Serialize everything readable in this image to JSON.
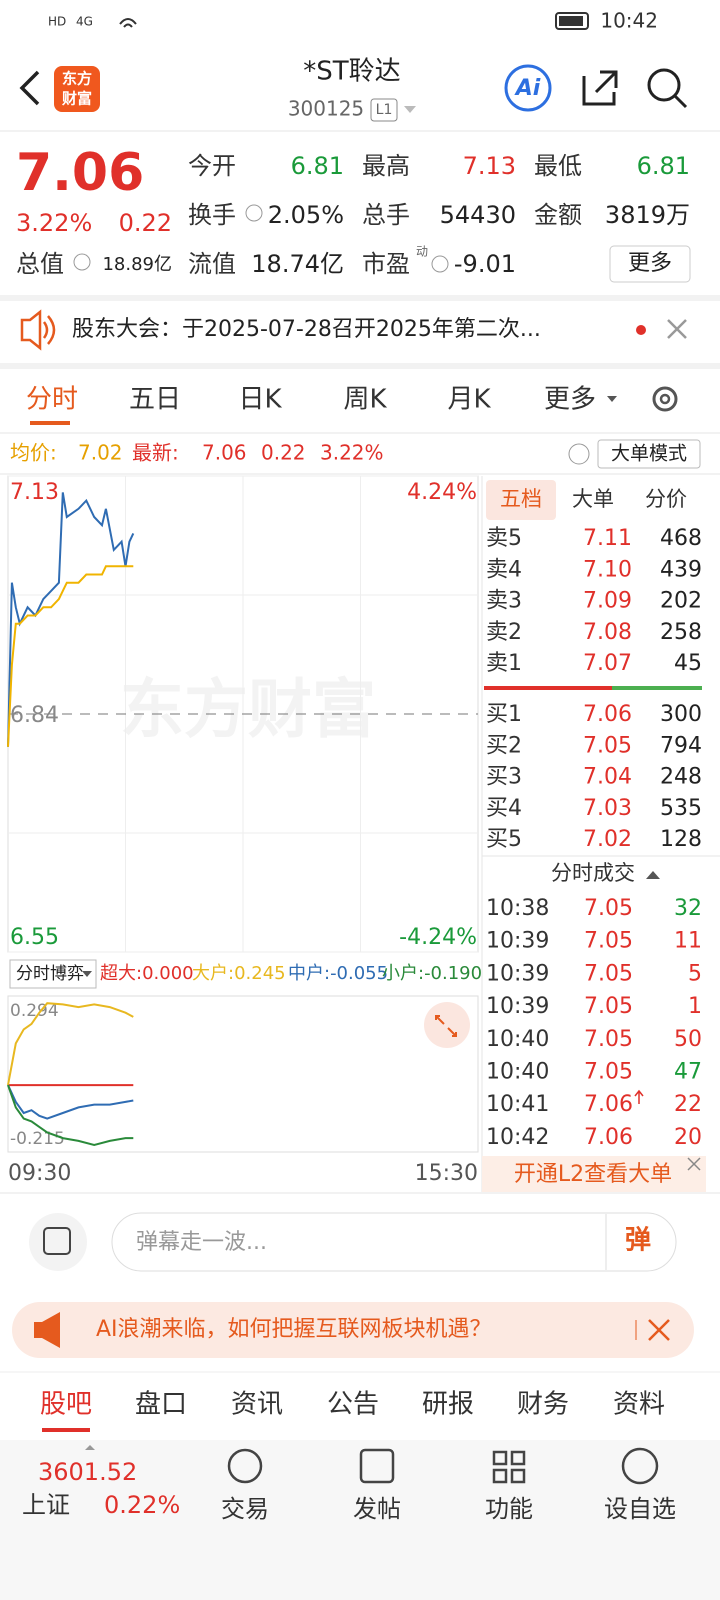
{
  "status_bar": {
    "indicators": [
      "HD",
      "4G"
    ],
    "time": "10:42"
  },
  "header": {
    "logo_top": "东方",
    "logo_bottom": "财富",
    "title": "*ST聆达",
    "code": "300125",
    "level": "L1",
    "ai": "Ai"
  },
  "quote": {
    "price": "7.06",
    "change_pct": "3.22%",
    "change": "0.22",
    "stats": [
      {
        "label": "今开",
        "value": "6.81"
      },
      {
        "label": "最高",
        "value": "7.13"
      },
      {
        "label": "最低",
        "value": "6.81"
      },
      {
        "label": "换手",
        "value": "2.05%"
      },
      {
        "label": "总手",
        "value": "54430"
      },
      {
        "label": "金额",
        "value": "3819万"
      },
      {
        "label": "总值",
        "value": "18.89亿"
      },
      {
        "label": "流值",
        "value": "18.74亿"
      },
      {
        "label": "市盈",
        "value": "-9.01"
      }
    ],
    "pe_sup": "动",
    "more": "更多"
  },
  "notice": {
    "text": "股东大会：于2025-07-28召开2025年第二次..."
  },
  "tabs": {
    "items": [
      "分时",
      "五日",
      "日K",
      "周K",
      "月K",
      "更多"
    ]
  },
  "info_bar": {
    "avg_label": "均价:",
    "avg": "7.02",
    "latest_label": "最新:",
    "latest": "7.06",
    "change": "0.22",
    "change_pct": "3.22%",
    "mode": "大单模式"
  },
  "watermark": "东方财富",
  "flow_selector": "分时博弈",
  "chart_data": [
    {
      "type": "line",
      "x": [
        0,
        2,
        4,
        6,
        10,
        14,
        18,
        22,
        26,
        28,
        30,
        36,
        40,
        44,
        48,
        50,
        54,
        58,
        60,
        62,
        64
      ],
      "series": [
        {
          "color": "#2f6cb3",
          "values": [
            6.8,
            7.0,
            6.97,
            6.95,
            6.97,
            6.96,
            6.98,
            6.99,
            7.0,
            7.11,
            7.08,
            7.09,
            7.1,
            7.08,
            7.07,
            7.09,
            7.04,
            7.05,
            7.02,
            7.05,
            7.06
          ]
        },
        {
          "color": "#f0b400",
          "values": [
            6.8,
            6.9,
            6.95,
            6.95,
            6.96,
            6.96,
            6.97,
            6.97,
            6.98,
            6.99,
            7.0,
            7.0,
            7.01,
            7.01,
            7.01,
            7.02,
            7.02,
            7.02,
            7.02,
            7.02,
            7.02
          ]
        }
      ],
      "xlim": [
        0,
        240
      ],
      "xticks": [
        {
          "value": 0,
          "label": "09:30"
        },
        {
          "value": 240,
          "label": "15:30"
        }
      ],
      "ylim": [
        6.55,
        7.13
      ],
      "yticks": [
        6.55,
        6.84,
        7.13
      ],
      "y2lim": [
        -4.24,
        4.24
      ],
      "y2ticks": [
        {
          "value": -4.24,
          "label": "-4.24%"
        },
        {
          "value": 4.24,
          "label": "4.24%"
        }
      ],
      "grid": true
    },
    {
      "type": "line",
      "x": [
        0,
        4,
        8,
        12,
        16,
        20,
        28,
        36,
        44,
        52,
        60,
        64
      ],
      "series": [
        {
          "name": "超大:0.000",
          "color": "#e0302a",
          "values": [
            0,
            0,
            0,
            0,
            0,
            0,
            0,
            0,
            0,
            0,
            0,
            0
          ]
        },
        {
          "name": "大户:0.245",
          "color": "#e8b820",
          "values": [
            0,
            0.15,
            0.2,
            0.22,
            0.26,
            0.294,
            0.29,
            0.28,
            0.29,
            0.28,
            0.26,
            0.245
          ]
        },
        {
          "name": "中户:-0.055",
          "color": "#2f6cb3",
          "values": [
            0,
            -0.06,
            -0.1,
            -0.09,
            -0.11,
            -0.12,
            -0.1,
            -0.08,
            -0.07,
            -0.07,
            -0.06,
            -0.055
          ]
        },
        {
          "name": "小户:-0.190",
          "color": "#2a8a3a",
          "values": [
            0,
            -0.08,
            -0.12,
            -0.13,
            -0.15,
            -0.17,
            -0.19,
            -0.2,
            -0.215,
            -0.2,
            -0.19,
            -0.19
          ]
        }
      ],
      "xlim": [
        0,
        240
      ],
      "ylim": [
        -0.24,
        0.32
      ],
      "yticks": [
        -0.215,
        0.294
      ]
    }
  ],
  "order_book": {
    "tabs": [
      "五档",
      "大单",
      "分价"
    ],
    "asks": [
      {
        "label": "卖5",
        "price": "7.11",
        "volume": "468"
      },
      {
        "label": "卖4",
        "price": "7.10",
        "volume": "439"
      },
      {
        "label": "卖3",
        "price": "7.09",
        "volume": "202"
      },
      {
        "label": "卖2",
        "price": "7.08",
        "volume": "258"
      },
      {
        "label": "卖1",
        "price": "7.07",
        "volume": "45"
      }
    ],
    "bids": [
      {
        "label": "买1",
        "price": "7.06",
        "volume": "300"
      },
      {
        "label": "买2",
        "price": "7.05",
        "volume": "794"
      },
      {
        "label": "买3",
        "price": "7.04",
        "volume": "248"
      },
      {
        "label": "买4",
        "price": "7.03",
        "volume": "535"
      },
      {
        "label": "买5",
        "price": "7.02",
        "volume": "128"
      }
    ]
  },
  "trades": {
    "title": "分时成交",
    "rows": [
      {
        "time": "10:38",
        "price": "7.05",
        "volume": "32",
        "color": "#1a9a3a"
      },
      {
        "time": "10:39",
        "price": "7.05",
        "volume": "11",
        "color": "#e0302a"
      },
      {
        "time": "10:39",
        "price": "7.05",
        "volume": "5",
        "color": "#e0302a"
      },
      {
        "time": "10:39",
        "price": "7.05",
        "volume": "1",
        "color": "#e0302a"
      },
      {
        "time": "10:40",
        "price": "7.05",
        "volume": "50",
        "color": "#e0302a"
      },
      {
        "time": "10:40",
        "price": "7.05",
        "volume": "47",
        "color": "#1a9a3a"
      },
      {
        "time": "10:41",
        "price": "7.06",
        "volume": "22",
        "color": "#e0302a"
      },
      {
        "time": "10:42",
        "price": "7.06",
        "volume": "20",
        "color": "#e0302a"
      }
    ]
  },
  "l2_banner": "开通L2查看大单",
  "comment": {
    "placeholder": "弹幕走一波...",
    "button": "弹"
  },
  "ad": {
    "text": "AI浪潮来临，如何把握互联网板块机遇？"
  },
  "sections": {
    "items": [
      "股吧",
      "盘口",
      "资讯",
      "公告",
      "研报",
      "财务",
      "资料"
    ]
  },
  "bottom_nav": {
    "index_value": "3601.52",
    "index_name": "上证",
    "index_change": "0.22%",
    "items": [
      "交易",
      "发帖",
      "功能",
      "设自选"
    ]
  }
}
